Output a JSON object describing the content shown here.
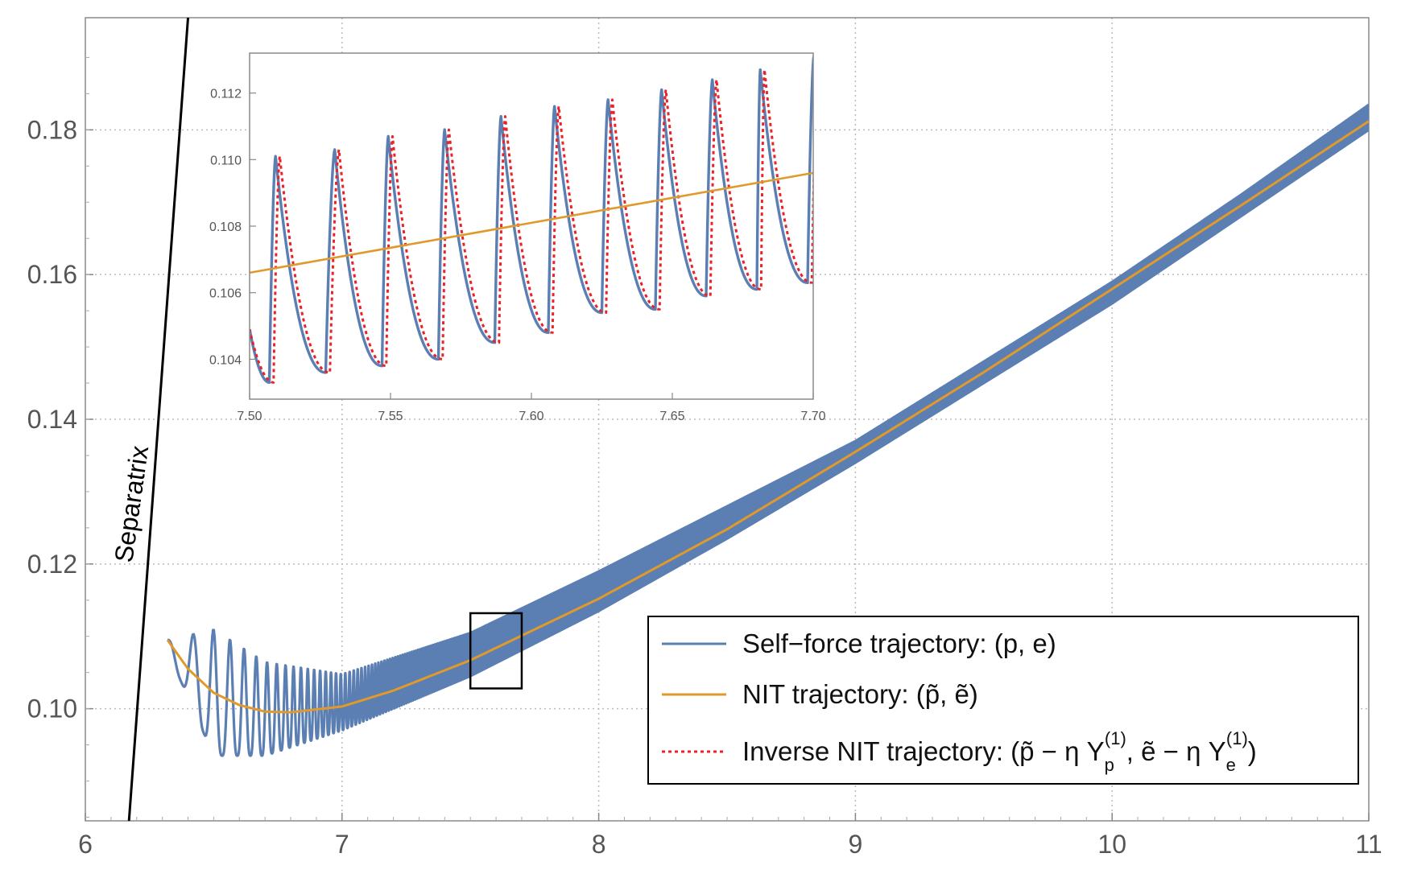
{
  "chart_data": [
    {
      "type": "line",
      "title": "",
      "xlabel": "",
      "ylabel": "",
      "xlim": [
        6,
        11
      ],
      "ylim": [
        0.0845,
        0.1955
      ],
      "x_ticks": [
        "6",
        "7",
        "8",
        "9",
        "10",
        "11"
      ],
      "y_ticks": [
        "0.10",
        "0.12",
        "0.14",
        "0.16",
        "0.18"
      ],
      "grid": true,
      "legend_position": "bottom-right",
      "annotation": "Separatrix",
      "zoom_box": {
        "x": [
          7.5,
          7.7
        ],
        "y": [
          0.1028,
          0.1132
        ]
      },
      "separatrix": {
        "x": [
          6.17,
          6.4
        ],
        "y": [
          0.0845,
          0.1955
        ]
      },
      "series": [
        {
          "name": "Self−force trajectory: (p, e)",
          "color": "#5b7fb2",
          "style": "solid",
          "description_points": {
            "x": [
              6.32,
              6.5,
              6.7,
              7.0,
              7.5,
              8.0,
              8.5,
              9.0,
              9.5,
              10.0,
              10.5,
              11.0
            ],
            "center": [
              0.1095,
              0.1013,
              0.0995,
              0.0998,
              0.1068,
              0.1152,
              0.1248,
              0.1355,
              0.1465,
              0.1575,
              0.1695,
              0.1812
            ],
            "lower_envelope": [
              0.108,
              0.0935,
              0.0935,
              0.097,
              0.1045,
              0.1135,
              0.1235,
              0.134,
              0.145,
              0.156,
              0.168,
              0.18
            ],
            "upper_envelope": [
              0.1095,
              0.111,
              0.1065,
              0.1048,
              0.1105,
              0.119,
              0.128,
              0.137,
              0.148,
              0.159,
              0.171,
              0.1835
            ]
          }
        },
        {
          "name": "NIT trajectory: (p̃, ẽ)",
          "color": "#e09a2c",
          "style": "solid",
          "x": [
            6.32,
            6.4,
            6.5,
            6.6,
            6.7,
            6.8,
            7.0,
            7.2,
            7.5,
            8.0,
            8.5,
            9.0,
            9.5,
            10.0,
            10.5,
            11.0
          ],
          "y": [
            0.1095,
            0.1055,
            0.1022,
            0.1005,
            0.0996,
            0.0995,
            0.1003,
            0.1025,
            0.1067,
            0.1152,
            0.1248,
            0.1355,
            0.1465,
            0.158,
            0.1695,
            0.1812
          ]
        },
        {
          "name": "Inverse NIT trajectory: (p̃ − η Y",
          "color": "#e8242a",
          "style": "dotted"
        }
      ],
      "legend_labels": {
        "sf": "Self−force trajectory: (p, e)",
        "nit": "NIT trajectory: (p̃, ẽ)",
        "inv_a": "Inverse NIT trajectory: (p̃ − η Y",
        "inv_sub_p": "p",
        "inv_sup": "(1)",
        "inv_b": ", ẽ − η Y",
        "inv_sub_e": "e",
        "inv_c": ")"
      }
    },
    {
      "type": "line",
      "title": "",
      "xlabel": "",
      "ylabel": "",
      "xlim": [
        7.5,
        7.7
      ],
      "ylim": [
        0.1028,
        0.1132
      ],
      "x_ticks": [
        "7.50",
        "7.55",
        "7.60",
        "7.65",
        "7.70"
      ],
      "y_ticks": [
        "0.104",
        "0.106",
        "0.108",
        "0.110",
        "0.112"
      ],
      "grid": false,
      "series": [
        {
          "name": "Self−force trajectory: (p, e)",
          "color": "#5b7fb2",
          "style": "solid",
          "minima": {
            "x": [
              7.507,
              7.527,
              7.547,
              7.567,
              7.587,
              7.606,
              7.625,
              7.644,
              7.662,
              7.68,
              7.698
            ],
            "y": [
              0.1033,
              0.1036,
              0.1038,
              0.104,
              0.1045,
              0.1048,
              0.1054,
              0.1055,
              0.1059,
              0.1061,
              0.1063
            ]
          },
          "maxima": {
            "x": [
              7.508,
              7.529,
              7.548,
              7.568,
              7.588,
              7.607,
              7.626,
              7.645,
              7.663,
              7.68,
              7.699
            ],
            "y": [
              0.1101,
              0.1103,
              0.1107,
              0.1109,
              0.1113,
              0.1116,
              0.1118,
              0.1121,
              0.1124,
              0.1127,
              0.1131
            ]
          }
        },
        {
          "name": "NIT trajectory: (p̃, ẽ)",
          "color": "#e09a2c",
          "style": "solid",
          "x": [
            7.5,
            7.7
          ],
          "y": [
            0.1066,
            0.1096
          ]
        },
        {
          "name": "Inverse NIT trajectory",
          "color": "#e8242a",
          "style": "dotted",
          "phase_lag_x": 0.0015
        }
      ]
    }
  ]
}
